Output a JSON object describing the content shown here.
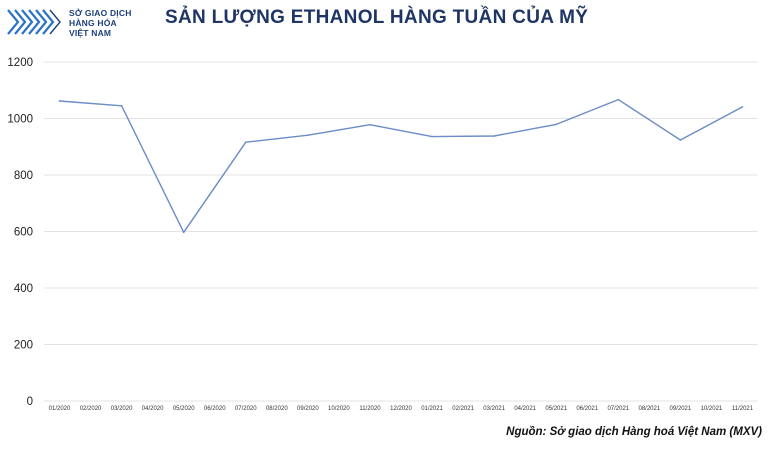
{
  "logo": {
    "line1": "SỞ GIAO DỊCH",
    "line2": "HÀNG HÓA",
    "line3": "VIỆT NAM",
    "color": "#1d3f7a"
  },
  "source_note": "Nguồn: Sở giao dịch Hàng hoá Việt Nam (MXV)",
  "chart_data": {
    "type": "line",
    "title": "SẢN LƯỢNG ETHANOL HÀNG TUẦN CỦA MỸ",
    "xlabel": "",
    "ylabel": "",
    "categories": [
      "01/2020",
      "02/2020",
      "03/2020",
      "04/2020",
      "05/2020",
      "06/2020",
      "07/2020",
      "08/2020",
      "09/2020",
      "10/2020",
      "11/2020",
      "12/2020",
      "01/2021",
      "02/2021",
      "03/2021",
      "04/2021",
      "05/2021",
      "06/2021",
      "07/2021",
      "08/2021",
      "09/2021",
      "10/2021",
      "11/2021"
    ],
    "x": [
      "01/2020",
      "03/2020",
      "05/2020",
      "07/2020",
      "09/2020",
      "11/2020",
      "01/2021",
      "03/2021",
      "05/2021",
      "07/2021",
      "09/2021",
      "11/2021"
    ],
    "series": [
      {
        "values": [
          1062,
          1045,
          597,
          916,
          941,
          978,
          936,
          938,
          979,
          1067,
          924,
          1041
        ]
      }
    ],
    "ylim": [
      0,
      1200
    ],
    "yticks": [
      0,
      200,
      400,
      600,
      800,
      1000,
      1200
    ],
    "grid": true,
    "line_color": "#6b8cc7",
    "grid_color": "#e3e3e3"
  }
}
